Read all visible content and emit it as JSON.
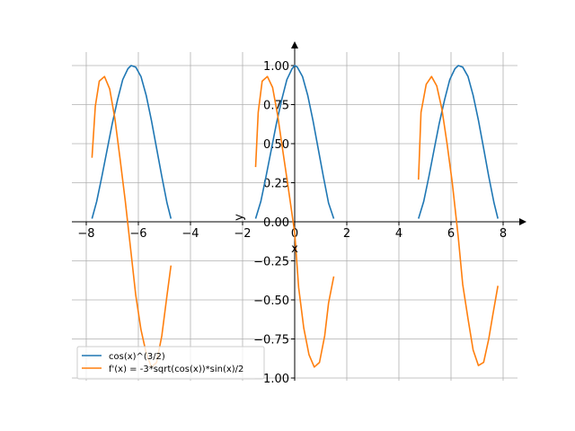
{
  "chart_data": {
    "type": "line",
    "title": "",
    "xlabel": "x",
    "ylabel": "y",
    "xlim": [
      -8.5,
      8.8
    ],
    "ylim": [
      -1.0,
      1.05
    ],
    "grid": true,
    "legend_position": "lower-left",
    "x_ticks": [
      -8,
      -6,
      -4,
      -2,
      0,
      2,
      4,
      6,
      8
    ],
    "y_ticks": [
      -1.0,
      -0.75,
      -0.5,
      -0.25,
      0.0,
      0.25,
      0.5,
      0.75,
      1.0
    ],
    "x_tick_labels": [
      "−8",
      "−6",
      "−4",
      "−2",
      "0",
      "2",
      "4",
      "6",
      "8"
    ],
    "y_tick_labels": [
      "−1.00",
      "−0.75",
      "−0.50",
      "−0.25",
      "0.00",
      "0.25",
      "0.50",
      "0.75",
      "1.00"
    ],
    "series": [
      {
        "name": "cos(x)^(3/2)",
        "color": "#1f77b4",
        "segments": [
          {
            "x": [
              -7.78,
              -7.6,
              -7.4,
              -7.2,
              -7.0,
              -6.8,
              -6.6,
              -6.4,
              -6.28,
              -6.1,
              -5.9,
              -5.7,
              -5.5,
              -5.3,
              -5.1,
              -4.9,
              -4.75
            ],
            "y": [
              0.02,
              0.13,
              0.29,
              0.46,
              0.63,
              0.78,
              0.91,
              0.98,
              1.0,
              0.99,
              0.93,
              0.81,
              0.65,
              0.47,
              0.29,
              0.12,
              0.02
            ]
          },
          {
            "x": [
              -1.5,
              -1.3,
              -1.1,
              -0.9,
              -0.7,
              -0.5,
              -0.3,
              -0.1,
              0.0,
              0.1,
              0.3,
              0.5,
              0.7,
              0.9,
              1.1,
              1.3,
              1.5
            ],
            "y": [
              0.02,
              0.13,
              0.29,
              0.46,
              0.63,
              0.78,
              0.91,
              0.98,
              1.0,
              0.99,
              0.93,
              0.81,
              0.65,
              0.47,
              0.29,
              0.12,
              0.02
            ]
          },
          {
            "x": [
              4.75,
              4.95,
              5.15,
              5.35,
              5.55,
              5.75,
              5.95,
              6.15,
              6.28,
              6.45,
              6.65,
              6.85,
              7.05,
              7.25,
              7.45,
              7.65,
              7.8
            ],
            "y": [
              0.02,
              0.13,
              0.29,
              0.46,
              0.63,
              0.78,
              0.91,
              0.98,
              1.0,
              0.99,
              0.93,
              0.81,
              0.65,
              0.47,
              0.29,
              0.12,
              0.02
            ]
          }
        ]
      },
      {
        "name": "f'(x) = -3*sqrt(cos(x))*sin(x)/2",
        "color": "#ff7f0e",
        "segments": [
          {
            "x": [
              -7.78,
              -7.65,
              -7.5,
              -7.3,
              -7.1,
              -6.9,
              -6.7,
              -6.5,
              -6.28,
              -6.1,
              -5.9,
              -5.7,
              -5.5,
              -5.3,
              -5.1,
              -4.9,
              -4.75
            ],
            "y": [
              0.41,
              0.74,
              0.9,
              0.93,
              0.85,
              0.66,
              0.4,
              0.13,
              -0.2,
              -0.47,
              -0.69,
              -0.84,
              -0.93,
              -0.9,
              -0.73,
              -0.47,
              -0.28
            ]
          },
          {
            "x": [
              -1.5,
              -1.4,
              -1.25,
              -1.05,
              -0.85,
              -0.65,
              -0.45,
              -0.25,
              0.0,
              0.15,
              0.35,
              0.55,
              0.75,
              0.95,
              1.15,
              1.3,
              1.5
            ],
            "y": [
              0.35,
              0.7,
              0.9,
              0.93,
              0.86,
              0.68,
              0.45,
              0.22,
              -0.07,
              -0.42,
              -0.68,
              -0.85,
              -0.93,
              -0.9,
              -0.73,
              -0.52,
              -0.35
            ]
          },
          {
            "x": [
              4.75,
              4.85,
              5.05,
              5.25,
              5.45,
              5.65,
              5.85,
              6.05,
              6.28,
              6.45,
              6.65,
              6.85,
              7.05,
              7.25,
              7.45,
              7.6,
              7.8
            ],
            "y": [
              0.27,
              0.7,
              0.88,
              0.93,
              0.87,
              0.72,
              0.5,
              0.25,
              -0.1,
              -0.4,
              -0.62,
              -0.82,
              -0.92,
              -0.9,
              -0.75,
              -0.6,
              -0.41
            ]
          }
        ]
      }
    ]
  }
}
